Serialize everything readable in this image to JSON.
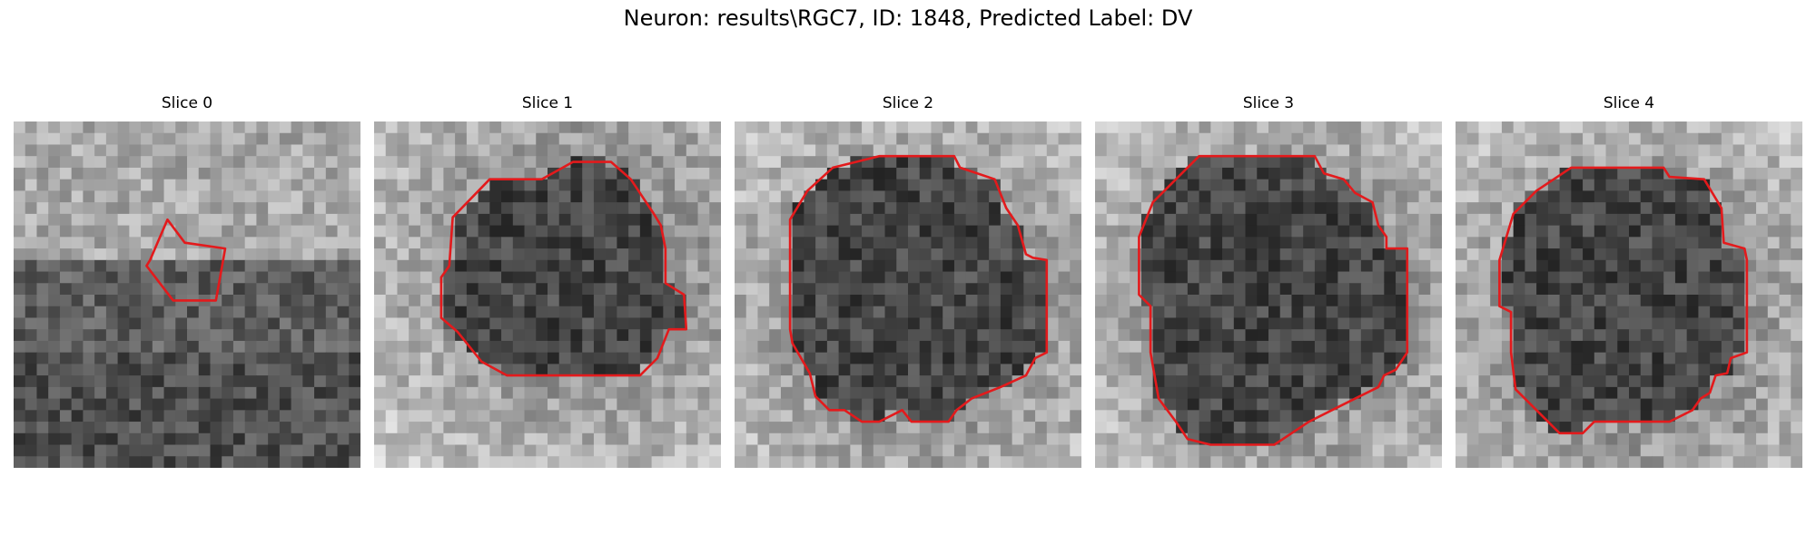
{
  "suptitle": "Neuron: results\\RGC7, ID: 1848, Predicted Label: DV",
  "grid_size": 30,
  "outline_color": "#e31a1c",
  "slices": [
    {
      "title": "Slice 0",
      "outline": [
        [
          13.3,
          8.5
        ],
        [
          14.8,
          10.5
        ],
        [
          18.3,
          11.0
        ],
        [
          17.5,
          15.5
        ],
        [
          17.3,
          15.5
        ],
        [
          14.5,
          15.5
        ],
        [
          13.8,
          15.5
        ],
        [
          11.5,
          12.5
        ],
        [
          11.8,
          12.0
        ]
      ]
    },
    {
      "title": "Slice 1",
      "outline": [
        [
          14.5,
          5.0
        ],
        [
          17.2,
          3.5
        ],
        [
          20.5,
          3.5
        ],
        [
          22.2,
          5.0
        ],
        [
          23.2,
          6.5
        ],
        [
          24.2,
          8.0
        ],
        [
          24.8,
          9.0
        ],
        [
          25.2,
          11.0
        ],
        [
          25.2,
          14.0
        ],
        [
          26.8,
          15.0
        ],
        [
          27.0,
          18.0
        ],
        [
          25.5,
          18.0
        ],
        [
          24.5,
          20.5
        ],
        [
          23.0,
          22.0
        ],
        [
          11.5,
          22.0
        ],
        [
          9.3,
          20.8
        ],
        [
          7.2,
          18.2
        ],
        [
          5.8,
          17.0
        ],
        [
          5.8,
          13.5
        ],
        [
          6.5,
          12.5
        ],
        [
          6.8,
          8.3
        ],
        [
          10.0,
          5.0
        ]
      ]
    },
    {
      "title": "Slice 2",
      "outline": [
        [
          12.5,
          3.0
        ],
        [
          19.0,
          3.0
        ],
        [
          19.5,
          4.0
        ],
        [
          22.5,
          5.0
        ],
        [
          23.5,
          7.5
        ],
        [
          24.5,
          9.0
        ],
        [
          25.2,
          11.5
        ],
        [
          25.8,
          11.8
        ],
        [
          27.0,
          12.0
        ],
        [
          27.0,
          20.0
        ],
        [
          26.0,
          20.5
        ],
        [
          25.2,
          22.0
        ],
        [
          23.0,
          23.0
        ],
        [
          20.5,
          24.0
        ],
        [
          19.2,
          25.0
        ],
        [
          18.5,
          26.0
        ],
        [
          15.3,
          26.0
        ],
        [
          14.5,
          25.0
        ],
        [
          12.5,
          26.0
        ],
        [
          11.0,
          26.0
        ],
        [
          9.5,
          25.0
        ],
        [
          8.2,
          25.0
        ],
        [
          7.0,
          23.8
        ],
        [
          6.5,
          21.8
        ],
        [
          5.0,
          19.2
        ],
        [
          4.8,
          18.0
        ],
        [
          4.8,
          8.5
        ],
        [
          6.3,
          6.0
        ],
        [
          8.5,
          4.0
        ],
        [
          10.5,
          3.5
        ]
      ]
    },
    {
      "title": "Slice 3",
      "outline": [
        [
          9.0,
          3.0
        ],
        [
          19.0,
          3.0
        ],
        [
          19.8,
          4.5
        ],
        [
          21.5,
          5.0
        ],
        [
          22.5,
          6.2
        ],
        [
          24.0,
          7.0
        ],
        [
          24.5,
          9.0
        ],
        [
          25.2,
          10.0
        ],
        [
          25.2,
          11.0
        ],
        [
          27.0,
          11.0
        ],
        [
          27.0,
          20.0
        ],
        [
          26.0,
          21.5
        ],
        [
          25.0,
          22.0
        ],
        [
          24.5,
          23.0
        ],
        [
          22.5,
          24.0
        ],
        [
          20.5,
          25.0
        ],
        [
          18.5,
          26.0
        ],
        [
          17.0,
          27.0
        ],
        [
          15.5,
          28.0
        ],
        [
          10.0,
          28.0
        ],
        [
          8.0,
          27.5
        ],
        [
          7.0,
          26.0
        ],
        [
          5.5,
          24.0
        ],
        [
          4.8,
          20.0
        ],
        [
          4.8,
          16.0
        ],
        [
          3.8,
          15.0
        ],
        [
          3.8,
          10.0
        ],
        [
          5.0,
          7.0
        ],
        [
          7.0,
          5.0
        ]
      ]
    },
    {
      "title": "Slice 4",
      "outline": [
        [
          10.0,
          4.0
        ],
        [
          18.0,
          4.0
        ],
        [
          18.5,
          4.8
        ],
        [
          21.5,
          5.0
        ],
        [
          23.0,
          7.5
        ],
        [
          23.2,
          10.5
        ],
        [
          25.0,
          11.0
        ],
        [
          25.2,
          12.0
        ],
        [
          25.2,
          20.0
        ],
        [
          23.8,
          20.5
        ],
        [
          23.5,
          21.8
        ],
        [
          22.5,
          22.0
        ],
        [
          22.0,
          23.5
        ],
        [
          21.2,
          24.0
        ],
        [
          20.5,
          25.0
        ],
        [
          18.5,
          26.0
        ],
        [
          12.0,
          26.0
        ],
        [
          11.0,
          27.0
        ],
        [
          10.5,
          27.0
        ],
        [
          9.0,
          27.0
        ],
        [
          8.0,
          26.0
        ],
        [
          5.2,
          23.2
        ],
        [
          4.8,
          20.0
        ],
        [
          4.8,
          16.5
        ],
        [
          3.8,
          16.0
        ],
        [
          3.8,
          12.0
        ],
        [
          5.0,
          8.0
        ],
        [
          7.0,
          6.0
        ]
      ]
    }
  ]
}
